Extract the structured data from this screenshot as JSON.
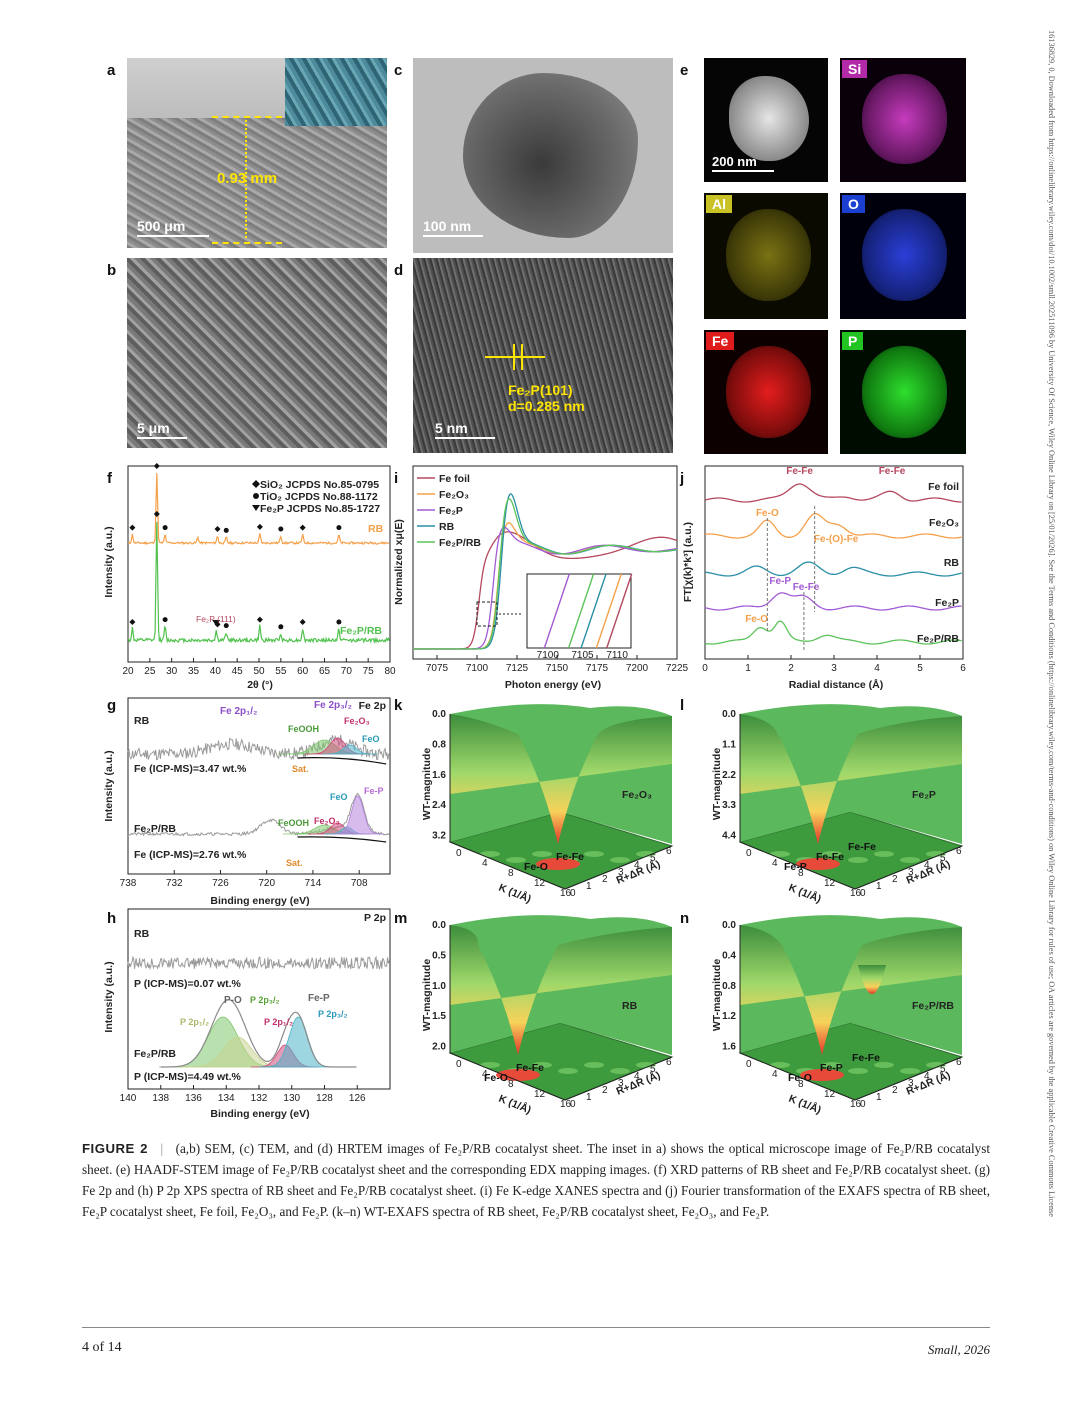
{
  "sidebar_text": "16136829, 0, Downloaded from https://onlinelibrary.wiley.com/doi/10.1002/smll.202511096 by University Of Science, Wiley Online Library on [25/01/2026]. See the Terms and Conditions (https://onlinelibrary.wiley.com/terms-and-conditions) on Wiley Online Library for rules of use; OA articles are governed by the applicable Creative Commons License",
  "panels": {
    "a": {
      "label": "a",
      "scale": "500 μm",
      "thickness": "0.93 mm"
    },
    "b": {
      "label": "b",
      "scale": "5 μm"
    },
    "c": {
      "label": "c",
      "scale": "100 nm"
    },
    "d": {
      "label": "d",
      "scale": "5 nm",
      "plane": "Fe₂P(101)",
      "dspacing": "d=0.285 nm"
    },
    "e": {
      "label": "e",
      "scale": "200 nm",
      "elements": [
        "Si",
        "Al",
        "O",
        "Fe",
        "P"
      ]
    },
    "f": {
      "label": "f"
    },
    "g": {
      "label": "g"
    },
    "h": {
      "label": "h"
    },
    "i": {
      "label": "i"
    },
    "j": {
      "label": "j"
    },
    "k": {
      "label": "k",
      "sample": "Fe₂O₃",
      "zticks": [
        "0.0",
        "0.8",
        "1.6",
        "2.4",
        "3.2"
      ],
      "peaks": [
        "Fe-O",
        "Fe-Fe"
      ]
    },
    "l": {
      "label": "l",
      "sample": "Fe₂P",
      "zticks": [
        "0.0",
        "1.1",
        "2.2",
        "3.3",
        "4.4"
      ],
      "peaks": [
        "Fe-P",
        "Fe-Fe",
        "Fe-Fe"
      ]
    },
    "m": {
      "label": "m",
      "sample": "RB",
      "zticks": [
        "0.0",
        "0.5",
        "1.0",
        "1.5",
        "2.0"
      ],
      "peaks": [
        "Fe-O",
        "Fe-Fe"
      ]
    },
    "n": {
      "label": "n",
      "sample": "Fe₂P/RB",
      "zticks": [
        "0.0",
        "0.4",
        "0.8",
        "1.2",
        "1.6"
      ],
      "peaks": [
        "Fe-O",
        "Fe-P",
        "Fe-Fe"
      ]
    },
    "wt_axes": {
      "z": "WT-magnitude",
      "k": "K (1/Å)",
      "r": "R+ΔR (Å)",
      "kticks": [
        "0",
        "4",
        "8",
        "12",
        "16"
      ],
      "rticks": [
        "0",
        "1",
        "2",
        "3",
        "4",
        "5",
        "6"
      ]
    }
  },
  "chart_data": [
    {
      "id": "f",
      "type": "line",
      "xlabel": "2θ (°)",
      "ylabel": "Intensity (a.u.)",
      "xlim": [
        20,
        80
      ],
      "xticks": [
        "20",
        "25",
        "30",
        "35",
        "40",
        "45",
        "50",
        "55",
        "60",
        "65",
        "70",
        "75",
        "80"
      ],
      "legend": [
        "SiO₂ JCPDS No.85-0795",
        "TiO₂ JCPDS No.88-1172",
        "Fe₂P JCPDS No.85-1727"
      ],
      "annotation": "Fe₂P (111)",
      "series": [
        {
          "name": "RB",
          "color": "#f5a04a",
          "peaks": [
            [
              21,
              0.12
            ],
            [
              26.6,
              1.0
            ],
            [
              28.5,
              0.12
            ],
            [
              36,
              0.08
            ],
            [
              40.5,
              0.1
            ],
            [
              42.5,
              0.08
            ],
            [
              50.2,
              0.13
            ],
            [
              55,
              0.1
            ],
            [
              60,
              0.12
            ],
            [
              68.3,
              0.12
            ]
          ]
        },
        {
          "name": "Fe₂P/RB",
          "color": "#52c24e",
          "peaks": [
            [
              21,
              0.1
            ],
            [
              26.6,
              1.0
            ],
            [
              28.5,
              0.12
            ],
            [
              40.2,
              0.08
            ],
            [
              42.5,
              0.07
            ],
            [
              50.2,
              0.12
            ],
            [
              55,
              0.06
            ],
            [
              60,
              0.1
            ],
            [
              68.3,
              0.1
            ]
          ]
        }
      ],
      "sio2_markers": [
        21,
        26.6,
        40.5,
        50.2,
        60
      ],
      "tio2_markers": [
        28.5,
        42.5,
        55,
        68.3
      ]
    },
    {
      "id": "g",
      "type": "line",
      "title": "Fe 2p",
      "xlabel": "Binding energy (eV)",
      "ylabel": "Intensity (a.u.)",
      "xlim": [
        738,
        704
      ],
      "xticks": [
        "738",
        "732",
        "726",
        "720",
        "714",
        "708"
      ],
      "series": [
        {
          "name": "RB",
          "note": "Fe (ICP-MS)=3.47 wt.%",
          "components": [
            "Fe 2p₁/₂",
            "Fe 2p₃/₂",
            "FeOOH",
            "Fe₂O₃",
            "FeO",
            "Sat."
          ]
        },
        {
          "name": "Fe₂P/RB",
          "note": "Fe (ICP-MS)=2.76 wt.%",
          "components": [
            "FeOOH",
            "Fe₂O₃",
            "FeO",
            "Fe-P",
            "Sat."
          ]
        }
      ]
    },
    {
      "id": "h",
      "type": "line",
      "title": "P 2p",
      "xlabel": "Binding energy (eV)",
      "ylabel": "Intensity (a.u.)",
      "xlim": [
        140,
        124
      ],
      "xticks": [
        "140",
        "138",
        "136",
        "134",
        "132",
        "130",
        "128",
        "126"
      ],
      "series": [
        {
          "name": "RB",
          "note": "P (ICP-MS)=0.07 wt.%"
        },
        {
          "name": "Fe₂P/RB",
          "note": "P (ICP-MS)=4.49 wt.%",
          "components": [
            "P-O",
            "P 2p₃/₂",
            "P 2p₁/₂",
            "P 2p₁/₂",
            "Fe-P",
            "P 2p₃/₂"
          ]
        }
      ]
    },
    {
      "id": "i",
      "type": "line",
      "xlabel": "Photon energy (eV)",
      "ylabel": "Normalized xμ(E)",
      "xlim": [
        7060,
        7225
      ],
      "xticks": [
        "7075",
        "7100",
        "7125",
        "7150",
        "7175",
        "7200",
        "7225"
      ],
      "inset_xticks": [
        "7100",
        "7105",
        "7110"
      ],
      "series": [
        {
          "name": "Fe foil",
          "color": "#b5485e"
        },
        {
          "name": "Fe₂O₃",
          "color": "#f5a04a"
        },
        {
          "name": "Fe₂P",
          "color": "#a25bd6"
        },
        {
          "name": "RB",
          "color": "#2a8fa6"
        },
        {
          "name": "Fe₂P/RB",
          "color": "#5cc35a"
        }
      ]
    },
    {
      "id": "j",
      "type": "line",
      "xlabel": "Radial distance (Å)",
      "ylabel": "FT[χ(k)*k³] (a.u.)",
      "xlim": [
        0,
        6
      ],
      "xticks": [
        "0",
        "1",
        "2",
        "3",
        "4",
        "5",
        "6"
      ],
      "series": [
        {
          "name": "Fe foil",
          "color": "#b5485e",
          "labels": [
            "Fe-Fe",
            "Fe-Fe"
          ]
        },
        {
          "name": "Fe₂O₃",
          "color": "#f5a04a",
          "labels": [
            "Fe-O",
            "Fe-(O)-Fe"
          ]
        },
        {
          "name": "RB",
          "color": "#2a8fa6"
        },
        {
          "name": "Fe₂P",
          "color": "#a25bd6",
          "labels": [
            "Fe-P",
            "Fe-Fe"
          ]
        },
        {
          "name": "Fe₂P/RB",
          "color": "#5cc35a",
          "labels": [
            "Fe-O"
          ]
        }
      ]
    }
  ],
  "caption": {
    "fig": "FIGURE 2",
    "text": "(a,b) SEM, (c) TEM, and (d) HRTEM images of Fe₂P/RB cocatalyst sheet. The inset in a) shows the optical microscope image of Fe₂P/RB cocatalyst sheet. (e) HAADF-STEM image of Fe₂P/RB cocatalyst sheet and the corresponding EDX mapping images. (f) XRD patterns of RB sheet and Fe₂P/RB cocatalyst sheet. (g) Fe 2p and (h) P 2p XPS spectra of RB sheet and Fe₂P/RB cocatalyst sheet. (i) Fe K-edge XANES spectra and (j) Fourier transformation of the EXAFS spectra of RB sheet, Fe₂P cocatalyst sheet, Fe foil, Fe₂O₃, and Fe₂P. (k–n) WT-EXAFS spectra of RB sheet, Fe₂P/RB cocatalyst sheet, Fe₂O₃, and Fe₂P."
  },
  "footer": {
    "page": "4 of 14",
    "journal": "Small, 2026"
  }
}
